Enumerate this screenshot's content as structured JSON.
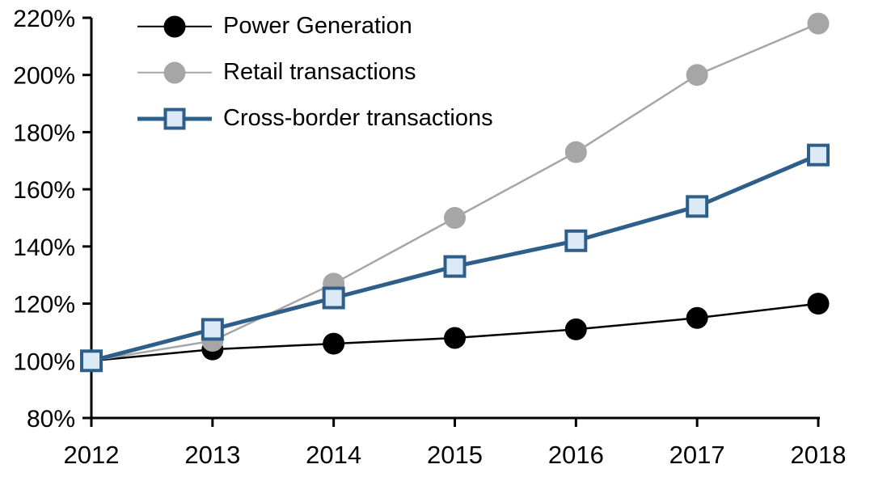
{
  "chart_data": {
    "type": "line",
    "title": "",
    "xlabel": "",
    "ylabel": "",
    "x_categories": [
      "2012",
      "2013",
      "2014",
      "2015",
      "2016",
      "2017",
      "2018"
    ],
    "series": [
      {
        "name": "Power Generation",
        "values": [
          100,
          104,
          106,
          108,
          111,
          115,
          120
        ],
        "color": "#000000",
        "marker": "circle",
        "marker_fill": "#000000",
        "line_width": 2.5
      },
      {
        "name": "Retail transactions",
        "values": [
          100,
          107,
          127,
          150,
          173,
          200,
          218
        ],
        "color": "#a6a6a6",
        "marker": "circle",
        "marker_fill": "#a6a6a6",
        "line_width": 2.5
      },
      {
        "name": "Cross-border transactions",
        "values": [
          100,
          111,
          122,
          133,
          142,
          154,
          172
        ],
        "color": "#2e5f8a",
        "marker": "square",
        "marker_fill": "#dce9f6",
        "line_width": 5
      }
    ],
    "ylim": [
      80,
      220
    ],
    "ytick_step": 20,
    "ytick_labels": [
      "80%",
      "100%",
      "120%",
      "140%",
      "160%",
      "180%",
      "200%",
      "220%"
    ],
    "xtick_labels": [
      "2012",
      "2013",
      "2014",
      "2015",
      "2016",
      "2017",
      "2018"
    ],
    "grid": false,
    "legend_position": "top-left",
    "axis_color": "#000000"
  }
}
